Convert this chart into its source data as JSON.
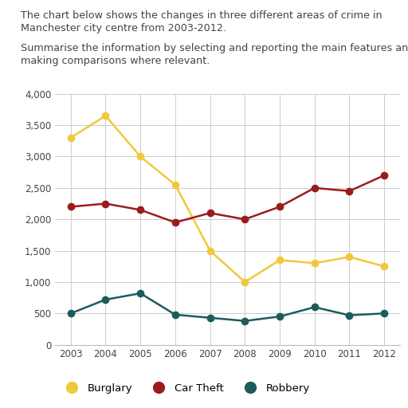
{
  "years": [
    2003,
    2004,
    2005,
    2006,
    2007,
    2008,
    2009,
    2010,
    2011,
    2012
  ],
  "burglary": [
    3300,
    3650,
    3000,
    2550,
    1500,
    1000,
    1350,
    1300,
    1400,
    1250
  ],
  "car_theft": [
    2200,
    2250,
    2150,
    1950,
    2100,
    2000,
    2200,
    2500,
    2450,
    2700
  ],
  "robbery": [
    500,
    720,
    820,
    480,
    430,
    380,
    450,
    600,
    470,
    500
  ],
  "burglary_color": "#f0c93b",
  "car_theft_color": "#9b1c1c",
  "robbery_color": "#1c5c5c",
  "title_line1": "The chart below shows the changes in three different areas of crime in",
  "title_line2": "Manchester city centre from 2003-2012.",
  "subtitle_line1": "Summarise the information by selecting and reporting the main features and",
  "subtitle_line2": "making comparisons where relevant.",
  "ylim": [
    0,
    4000
  ],
  "yticks": [
    0,
    500,
    1000,
    1500,
    2000,
    2500,
    3000,
    3500,
    4000
  ],
  "ytick_labels": [
    "0",
    "500",
    "1,000",
    "1,500",
    "2,000",
    "2,500",
    "3,000",
    "3,500",
    "4,000"
  ],
  "legend_labels": [
    "Burglary",
    "Car Theft",
    "Robbery"
  ],
  "marker_size": 6,
  "line_width": 1.8,
  "background_color": "#ffffff",
  "grid_color": "#cccccc",
  "text_color": "#444444",
  "font_size_text": 9.2,
  "font_size_ticks": 8.5,
  "font_size_legend": 9.5
}
